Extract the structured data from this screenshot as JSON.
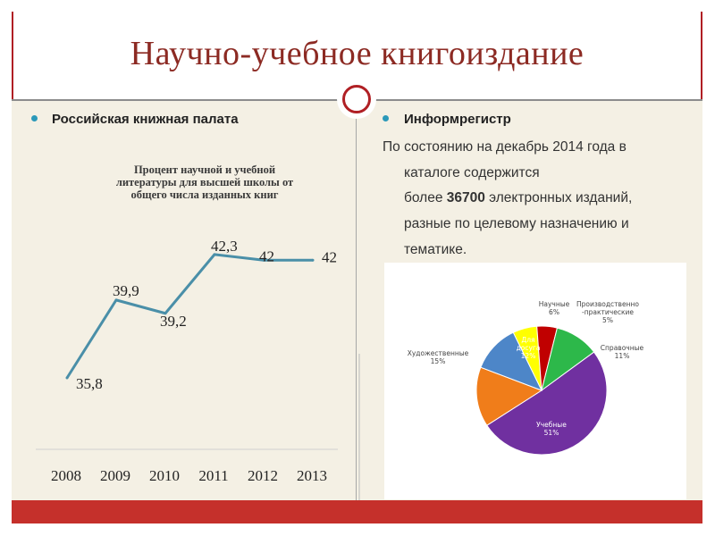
{
  "title": "Научно-учебное книгоиздание",
  "left": {
    "heading": "Российская книжная палата"
  },
  "right": {
    "heading": "Информрегистр",
    "lines": [
      "По состоянию на декабрь 2014 года в",
      "каталоге содержится",
      "более ",
      "36700",
      " электронных изданий,",
      "разные по целевому назначению и",
      "тематике."
    ]
  },
  "colors": {
    "title": "#8c2a23",
    "accent_red": "#c5302b",
    "bullet": "#2b99b9",
    "line_series": "#4a8fa8",
    "background": "#f4f0e4"
  },
  "chart_data": [
    {
      "type": "line",
      "title": "Процент научной и учебной литературы для высшей школы от общего числа изданных книг",
      "title_lines": [
        "Процент научной и учебной",
        "литературы для высшей школы от",
        "общего числа изданных книг"
      ],
      "categories": [
        "2008",
        "2009",
        "2010",
        "2011",
        "2012",
        "2013"
      ],
      "values": [
        35.8,
        39.9,
        39.2,
        42.3,
        42,
        42
      ],
      "data_labels": [
        "35,8",
        "39,9",
        "39,2",
        "42,3",
        "42",
        "42"
      ],
      "ylim": [
        35,
        43
      ],
      "grid": false,
      "color": "#4a8fa8"
    },
    {
      "type": "pie",
      "title": "",
      "slices": [
        {
          "name": "Научные",
          "label": "Научные\n6%",
          "value": 6,
          "color": "#ffff00"
        },
        {
          "name": "Производственно-практические",
          "label": "Производственно\n-практические\n5%",
          "value": 5,
          "color": "#c00000"
        },
        {
          "name": "Справочные",
          "label": "Справочные\n11%",
          "value": 11,
          "color": "#2db84a"
        },
        {
          "name": "Учебные",
          "label": "Учебные\n51%",
          "value": 51,
          "color": "#7030a0"
        },
        {
          "name": "Художественные",
          "label": "Художественные\n15%",
          "value": 15,
          "color": "#f07d1a"
        },
        {
          "name": "Для досуга",
          "label": "Для\nдосуга\n12%",
          "value": 12,
          "color": "#4d86c8"
        }
      ]
    }
  ]
}
